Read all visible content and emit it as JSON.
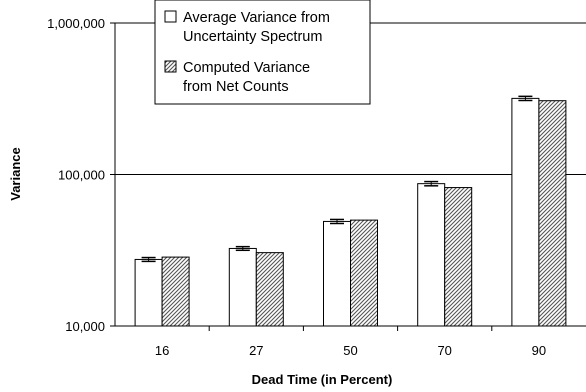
{
  "chart_data": {
    "type": "bar",
    "title": "",
    "xlabel": "Dead Time (in Percent)",
    "ylabel": "Variance",
    "yscale": "log",
    "ylim": [
      10000,
      1000000
    ],
    "yticks": [
      10000,
      100000,
      1000000
    ],
    "ytick_labels": [
      "10,000",
      "100,000",
      "1,000,000"
    ],
    "grid": "horizontal",
    "legend_position": "top-left",
    "categories": [
      "16",
      "27",
      "50",
      "70",
      "90"
    ],
    "series": [
      {
        "name": "Average Variance from Uncertainty Spectrum",
        "legend_lines": [
          "Average Variance from",
          "Uncertainty Spectrum"
        ],
        "pattern": "open",
        "color": "#ffffff",
        "values": [
          27500,
          32500,
          49000,
          87000,
          318000
        ],
        "error": [
          800,
          900,
          1500,
          2800,
          10000
        ]
      },
      {
        "name": "Computed Variance from Net Counts",
        "legend_lines": [
          "Computed Variance",
          "from Net Counts"
        ],
        "pattern": "diagonal-hatch",
        "color": "#000000",
        "values": [
          28500,
          30500,
          50000,
          82000,
          307000
        ]
      }
    ]
  }
}
